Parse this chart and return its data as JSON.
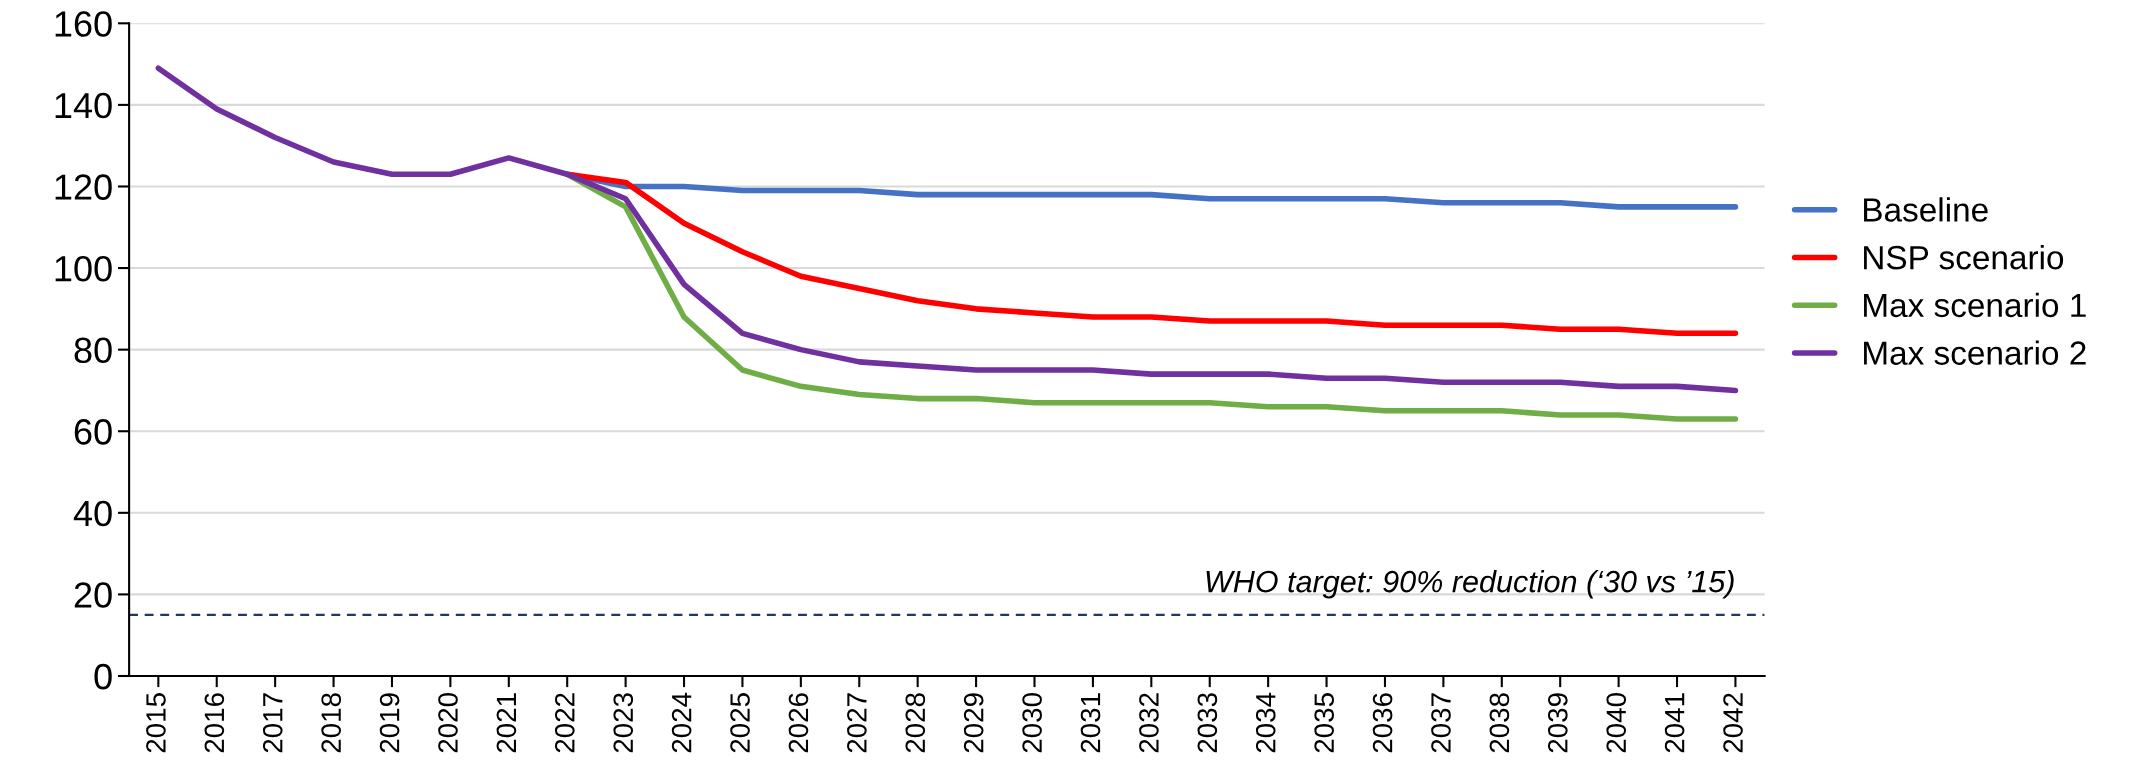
{
  "chart_data": {
    "type": "line",
    "categories": [
      "2015",
      "2016",
      "2017",
      "2018",
      "2019",
      "2020",
      "2021",
      "2022",
      "2023",
      "2024",
      "2025",
      "2026",
      "2027",
      "2028",
      "2029",
      "2030",
      "2031",
      "2032",
      "2033",
      "2034",
      "2035",
      "2036",
      "2037",
      "2038",
      "2039",
      "2040",
      "2041",
      "2042"
    ],
    "series": [
      {
        "name": "Baseline",
        "color": "#4472c4",
        "values": [
          null,
          null,
          null,
          null,
          null,
          null,
          null,
          123,
          120,
          120,
          119,
          119,
          119,
          118,
          118,
          118,
          118,
          118,
          117,
          117,
          117,
          117,
          116,
          116,
          116,
          115,
          115,
          115
        ]
      },
      {
        "name": "NSP scenario",
        "color": "#ff0000",
        "values": [
          null,
          null,
          null,
          null,
          null,
          null,
          null,
          123,
          121,
          111,
          104,
          98,
          95,
          92,
          90,
          89,
          88,
          88,
          87,
          87,
          87,
          86,
          86,
          86,
          85,
          85,
          84,
          84
        ]
      },
      {
        "name": "Max scenario 1",
        "color": "#70ad47",
        "values": [
          null,
          null,
          null,
          null,
          null,
          null,
          null,
          123,
          115,
          88,
          75,
          71,
          69,
          68,
          68,
          67,
          67,
          67,
          67,
          66,
          66,
          65,
          65,
          65,
          64,
          64,
          63,
          63
        ]
      },
      {
        "name": "Max scenario 2",
        "color": "#7030a0",
        "values": [
          149,
          139,
          132,
          126,
          123,
          123,
          127,
          123,
          117,
          96,
          84,
          80,
          77,
          76,
          75,
          75,
          75,
          74,
          74,
          74,
          73,
          73,
          72,
          72,
          72,
          71,
          71,
          70
        ]
      }
    ],
    "ylim": [
      0,
      160
    ],
    "yticks": [
      0,
      20,
      40,
      60,
      80,
      100,
      120,
      140,
      160
    ],
    "grid": "y",
    "legend": "right",
    "ref_lines": [
      {
        "axis": "y",
        "value": 15,
        "label": "WHO target: 90% reduction (‘30 vs ’15)",
        "color": "#1f3864",
        "line_style": "dashed"
      }
    ]
  }
}
